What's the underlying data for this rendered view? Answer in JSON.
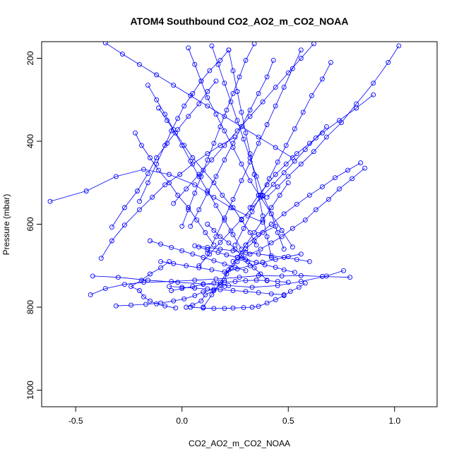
{
  "chart_data": {
    "type": "line",
    "title": "ATOM4 Southbound CO2_AO2_m_CO2_NOAA",
    "xlabel": "CO2_AO2_m_CO2_NOAA",
    "ylabel": "Pressure (mbar)",
    "xlim": [
      -0.66,
      1.2
    ],
    "ylim": [
      1040,
      160
    ],
    "y_reversed": true,
    "x_ticks": [
      -0.5,
      0.0,
      0.5,
      1.0
    ],
    "x_tick_labels": [
      "-0.5",
      "0.0",
      "0.5",
      "1.0"
    ],
    "y_ticks": [
      200,
      400,
      600,
      800,
      1000
    ],
    "y_tick_labels": [
      "200",
      "400",
      "600",
      "800",
      "1000"
    ],
    "grid": false,
    "legend": "none",
    "series_color": "#0000ff",
    "marker": "open-circle",
    "profiles": [
      {
        "x": [
          0.02,
          0.05,
          0.09,
          0.11,
          0.15,
          0.18,
          0.2,
          0.21,
          0.23,
          0.26,
          0.28,
          0.3,
          0.34,
          0.38,
          0.44
        ],
        "y": [
          800,
          795,
          785,
          770,
          760,
          745,
          735,
          720,
          705,
          690,
          675,
          660,
          640,
          620,
          605
        ]
      },
      {
        "x": [
          -0.03,
          -0.08,
          -0.12,
          -0.15,
          -0.18,
          -0.2,
          -0.24,
          -0.19,
          -0.15,
          -0.1,
          -0.06
        ],
        "y": [
          802,
          797,
          792,
          785,
          775,
          760,
          750,
          735,
          720,
          705,
          690
        ]
      },
      {
        "x": [
          -0.43,
          -0.36,
          -0.27,
          -0.18,
          -0.05,
          0.06,
          0.16,
          0.27,
          0.36,
          0.47,
          0.56,
          0.66,
          0.79
        ],
        "y": [
          770,
          755,
          745,
          740,
          738,
          735,
          732,
          728,
          724,
          725,
          724,
          726,
          728
        ]
      },
      {
        "x": [
          -0.42,
          -0.3,
          -0.16,
          -0.02,
          0.1,
          0.22,
          0.33,
          0.45,
          0.56,
          0.68,
          0.76
        ],
        "y": [
          725,
          728,
          735,
          740,
          744,
          748,
          752,
          748,
          738,
          725,
          712
        ]
      },
      {
        "x": [
          -0.31,
          -0.24,
          -0.17,
          -0.1,
          -0.04,
          0.01,
          0.06,
          0.1,
          0.15,
          0.2
        ],
        "y": [
          797,
          795,
          793,
          790,
          785,
          780,
          772,
          763,
          757,
          750
        ]
      },
      {
        "x": [
          0.04,
          0.1,
          0.15,
          0.2,
          0.24,
          0.29,
          0.33,
          0.36,
          0.4,
          0.44,
          0.48,
          0.51,
          0.55,
          0.58
        ],
        "y": [
          800,
          802,
          803,
          803,
          802,
          801,
          800,
          798,
          790,
          782,
          772,
          762,
          752,
          742
        ]
      },
      {
        "x": [
          -0.62,
          -0.45,
          -0.31,
          -0.18,
          -0.06,
          0.06,
          0.15,
          0.23,
          0.31,
          0.38
        ],
        "y": [
          545,
          520,
          485,
          468,
          480,
          505,
          535,
          560,
          580,
          595
        ]
      },
      {
        "x": [
          -0.38,
          -0.33,
          -0.27,
          -0.2,
          -0.14,
          -0.08,
          -0.01,
          0.05,
          0.12,
          0.18,
          0.25
        ],
        "y": [
          682,
          640,
          602,
          565,
          535,
          505,
          480,
          455,
          430,
          410,
          390
        ]
      },
      {
        "x": [
          -0.33,
          -0.27,
          -0.21,
          -0.16,
          -0.12,
          -0.07,
          -0.02,
          0.03,
          0.08,
          0.12,
          0.16
        ],
        "y": [
          607,
          560,
          520,
          478,
          440,
          405,
          372,
          340,
          310,
          280,
          255
        ]
      },
      {
        "x": [
          -0.2,
          -0.16,
          -0.12,
          -0.08,
          -0.05,
          -0.02,
          0.01,
          0.05,
          0.09,
          0.13,
          0.18,
          0.22
        ],
        "y": [
          545,
          500,
          455,
          410,
          375,
          345,
          315,
          285,
          255,
          230,
          205,
          180
        ]
      },
      {
        "x": [
          -0.11,
          -0.07,
          -0.03,
          0.01,
          0.05,
          0.1,
          0.15,
          0.19,
          0.24,
          0.28,
          0.32,
          0.35
        ],
        "y": [
          320,
          350,
          380,
          410,
          440,
          470,
          500,
          530,
          560,
          590,
          620,
          650
        ]
      },
      {
        "x": [
          0.14,
          0.17,
          0.2,
          0.23,
          0.26,
          0.29,
          0.32,
          0.35,
          0.38,
          0.42,
          0.45,
          0.48
        ],
        "y": [
          170,
          215,
          260,
          305,
          350,
          395,
          440,
          485,
          530,
          575,
          620,
          660
        ]
      },
      {
        "x": [
          0.86,
          0.8,
          0.74,
          0.69,
          0.63,
          0.58,
          0.52,
          0.47,
          0.42,
          0.37,
          0.32,
          0.28,
          0.24
        ],
        "y": [
          465,
          490,
          515,
          540,
          565,
          590,
          610,
          630,
          645,
          660,
          672,
          682,
          690
        ]
      },
      {
        "x": [
          0.84,
          0.78,
          0.72,
          0.66,
          0.6,
          0.54,
          0.48,
          0.42,
          0.36,
          0.3
        ],
        "y": [
          452,
          470,
          488,
          510,
          530,
          552,
          575,
          600,
          625,
          650
        ]
      },
      {
        "x": [
          1.02,
          0.97,
          0.9,
          0.82,
          0.75,
          0.68,
          0.62,
          0.56,
          0.5,
          0.45,
          0.4
        ],
        "y": [
          170,
          210,
          260,
          310,
          355,
          390,
          425,
          455,
          485,
          510,
          535
        ]
      },
      {
        "x": [
          0.9,
          0.82,
          0.74,
          0.66,
          0.6,
          0.54,
          0.49,
          0.44,
          0.4,
          0.36,
          0.32
        ],
        "y": [
          288,
          320,
          350,
          380,
          405,
          430,
          455,
          480,
          505,
          530,
          560
        ]
      },
      {
        "x": [
          -0.16,
          -0.12,
          -0.08,
          -0.04,
          0.0,
          0.04,
          0.08,
          0.12,
          0.16,
          0.2,
          0.24,
          0.28
        ],
        "y": [
          265,
          300,
          335,
          372,
          410,
          448,
          485,
          520,
          555,
          590,
          625,
          660
        ]
      },
      {
        "x": [
          -0.22,
          -0.19,
          -0.15,
          -0.11,
          -0.06,
          -0.02,
          0.03,
          0.07,
          0.11,
          0.15
        ],
        "y": [
          380,
          410,
          440,
          470,
          500,
          530,
          560,
          590,
          620,
          650
        ]
      },
      {
        "x": [
          0.56,
          0.52,
          0.48,
          0.44,
          0.4,
          0.36,
          0.32,
          0.28,
          0.24,
          0.2,
          0.16,
          0.12
        ],
        "y": [
          180,
          225,
          270,
          315,
          360,
          405,
          450,
          495,
          540,
          585,
          630,
          670
        ]
      },
      {
        "x": [
          0.7,
          0.66,
          0.61,
          0.57,
          0.53,
          0.49,
          0.45,
          0.41,
          0.37,
          0.33,
          0.29,
          0.25
        ],
        "y": [
          210,
          250,
          290,
          330,
          370,
          410,
          450,
          490,
          530,
          570,
          610,
          650
        ]
      },
      {
        "x": [
          0.34,
          0.3,
          0.27,
          0.24,
          0.21,
          0.18,
          0.15,
          0.12,
          0.09,
          0.06,
          0.03,
          0.0
        ],
        "y": [
          165,
          205,
          245,
          285,
          325,
          365,
          405,
          445,
          485,
          525,
          565,
          605
        ]
      },
      {
        "x": [
          0.03,
          0.06,
          0.09,
          0.12,
          0.16,
          0.2,
          0.24,
          0.28,
          0.32,
          0.37,
          0.42,
          0.47,
          0.52
        ],
        "y": [
          175,
          215,
          255,
          295,
          335,
          375,
          415,
          455,
          495,
          535,
          575,
          615,
          655
        ]
      },
      {
        "x": [
          0.43,
          0.4,
          0.36,
          0.32,
          0.28,
          0.24,
          0.2,
          0.16,
          0.12,
          0.08,
          0.04
        ],
        "y": [
          205,
          245,
          285,
          325,
          365,
          405,
          445,
          485,
          525,
          565,
          605
        ]
      },
      {
        "x": [
          0.62,
          0.56,
          0.5,
          0.44,
          0.38,
          0.32,
          0.26,
          0.2,
          0.14,
          0.08,
          0.02,
          -0.04
        ],
        "y": [
          165,
          200,
          235,
          270,
          305,
          340,
          375,
          410,
          445,
          480,
          515,
          550
        ]
      },
      {
        "x": [
          -0.36,
          -0.28,
          -0.2,
          -0.12,
          -0.04,
          0.04,
          0.12,
          0.2,
          0.28,
          0.36,
          0.44,
          0.52
        ],
        "y": [
          163,
          190,
          215,
          240,
          265,
          290,
          315,
          340,
          365,
          390,
          415,
          440
        ]
      },
      {
        "x": [
          0.68,
          0.63,
          0.58,
          0.53,
          0.48,
          0.43,
          0.38,
          0.33,
          0.28,
          0.23,
          0.18,
          0.13,
          0.08
        ],
        "y": [
          365,
          392,
          420,
          448,
          476,
          504,
          532,
          560,
          588,
          616,
          644,
          672,
          700
        ]
      },
      {
        "x": [
          0.08,
          0.12,
          0.17,
          0.21,
          0.26,
          0.3,
          0.35,
          0.39,
          0.44,
          0.48,
          0.53
        ],
        "y": [
          655,
          662,
          668,
          674,
          680,
          686,
          692,
          698,
          704,
          710,
          716
        ]
      },
      {
        "x": [
          -0.1,
          -0.04,
          0.02,
          0.08,
          0.14,
          0.2,
          0.26,
          0.32,
          0.38,
          0.44,
          0.5,
          0.56
        ],
        "y": [
          690,
          695,
          700,
          705,
          710,
          715,
          708,
          700,
          692,
          685,
          678,
          672
        ]
      },
      {
        "x": [
          0.12,
          0.15,
          0.18,
          0.22,
          0.25,
          0.28,
          0.31,
          0.34,
          0.37,
          0.4
        ],
        "y": [
          600,
          615,
          630,
          645,
          660,
          675,
          690,
          705,
          720,
          735
        ]
      },
      {
        "x": [
          0.5,
          0.46,
          0.42,
          0.38,
          0.34,
          0.3,
          0.26,
          0.22,
          0.18,
          0.14,
          0.1
        ],
        "y": [
          500,
          530,
          560,
          590,
          620,
          650,
          680,
          710,
          740,
          770,
          800
        ]
      },
      {
        "x": [
          0.22,
          0.24,
          0.26,
          0.28,
          0.3,
          0.32,
          0.34,
          0.36,
          0.38,
          0.4,
          0.42
        ],
        "y": [
          180,
          230,
          280,
          330,
          380,
          430,
          480,
          530,
          580,
          630,
          680
        ]
      },
      {
        "x": [
          -0.05,
          0.0,
          0.05,
          0.1,
          0.15,
          0.2,
          0.25,
          0.3,
          0.35,
          0.4,
          0.45,
          0.5
        ],
        "y": [
          760,
          755,
          750,
          745,
          742,
          740,
          738,
          736,
          735,
          736,
          738,
          740
        ]
      },
      {
        "x": [
          0.48,
          0.42,
          0.36,
          0.3,
          0.24,
          0.18,
          0.12,
          0.06,
          0.0,
          -0.06
        ],
        "y": [
          770,
          768,
          765,
          762,
          760,
          758,
          756,
          754,
          752,
          750
        ]
      },
      {
        "x": [
          0.6,
          0.54,
          0.48,
          0.42,
          0.36,
          0.3,
          0.24,
          0.18,
          0.12,
          0.06
        ],
        "y": [
          690,
          685,
          680,
          676,
          672,
          668,
          664,
          660,
          656,
          652
        ]
      },
      {
        "x": [
          -0.15,
          -0.1,
          -0.05,
          0.0,
          0.05,
          0.1,
          0.15,
          0.2,
          0.25,
          0.3
        ],
        "y": [
          640,
          648,
          656,
          664,
          672,
          680,
          688,
          696,
          704,
          712
        ]
      }
    ]
  }
}
